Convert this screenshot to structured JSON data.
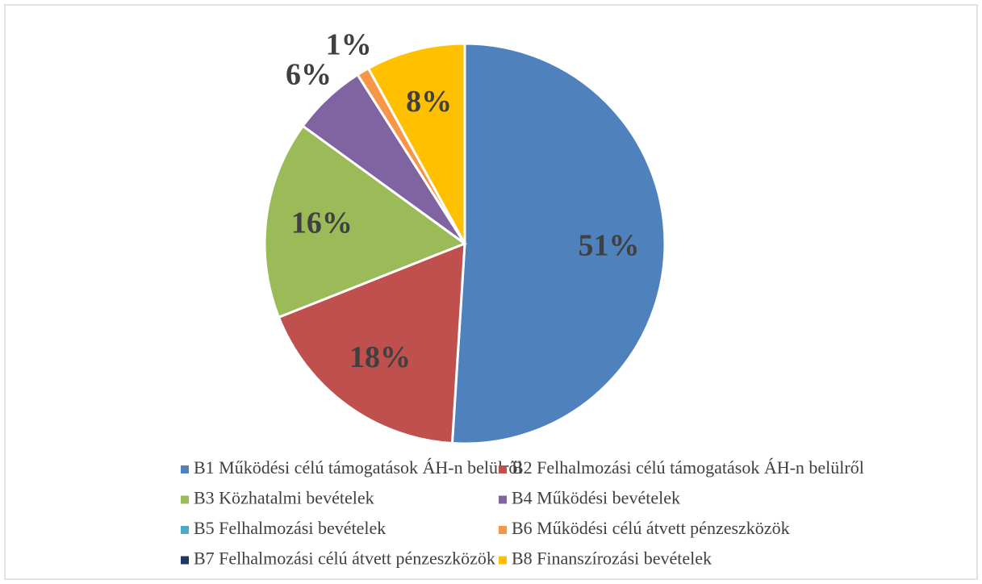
{
  "chart_data": {
    "type": "pie",
    "categories": [
      "B1 Működési célú támogatások ÁH-n belülről",
      "B2 Felhalmozási célú támogatások ÁH-n belülről",
      "B3 Közhatalmi bevételek",
      "B4 Működési bevételek",
      "B5 Felhalmozási bevételek",
      "B6 Működési célú átvett pénzeszközök",
      "B7 Felhalmozási célú átvett pénzeszközök",
      "B8 Finanszírozási bevételek"
    ],
    "values": [
      51,
      18,
      16,
      6,
      0,
      1,
      0,
      8
    ],
    "value_labels": [
      "51%",
      "18%",
      "16%",
      "6%",
      null,
      "1%",
      null,
      "8%"
    ],
    "colors": [
      "#4f81bd",
      "#c0504d",
      "#9bbb59",
      "#8064a2",
      "#4bacc6",
      "#f79646",
      "#1f3864",
      "#ffc000"
    ]
  }
}
